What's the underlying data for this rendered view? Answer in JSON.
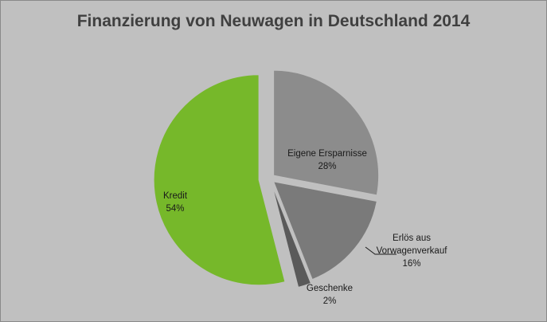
{
  "chart_data": {
    "type": "pie",
    "title": "Finanzierung von Neuwagen in Deutschland 2014",
    "slices": [
      {
        "label_lines": [
          "Eigene Ersparnisse"
        ],
        "value": 28,
        "value_label": "28%",
        "color": "#8c8c8c"
      },
      {
        "label_lines": [
          "Erlös aus",
          "Vorwagenverkauf"
        ],
        "value": 16,
        "value_label": "16%",
        "color": "#7a7a7a"
      },
      {
        "label_lines": [
          "Geschenke"
        ],
        "value": 2,
        "value_label": "2%",
        "color": "#5a5a5a"
      },
      {
        "label_lines": [
          "Kredit"
        ],
        "value": 54,
        "value_label": "54%",
        "color": "#76b82a"
      }
    ],
    "start_angle_deg": 0,
    "direction": "clockwise",
    "exploded": "all"
  }
}
